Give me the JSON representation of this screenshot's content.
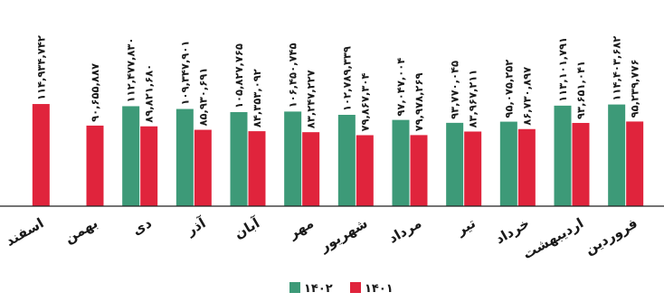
{
  "chart_data": {
    "type": "bar",
    "categories": [
      "فروردین",
      "اردیبهشت",
      "خرداد",
      "تیر",
      "مرداد",
      "شهریور",
      "مهر",
      "آبان",
      "آذر",
      "دی",
      "بهمن",
      "اسفند"
    ],
    "series": [
      {
        "name": "۱۴۰۲",
        "color": "#3d9a78",
        "values": [
          114403682,
          113101791,
          95075252,
          93770045,
          97047004,
          102789339,
          106450745,
          105827765,
          109347901,
          112477830,
          null,
          null
        ],
        "labels": [
          "۱۱۴,۴۰۳,۶۸۲",
          "۱۱۳,۱۰۱,۷۹۱",
          "۹۵,۰۷۵,۲۵۲",
          "۹۳,۷۷۰,۰۴۵",
          "۹۷,۰۴۷,۰۰۴",
          "۱۰۲,۷۸۹,۳۳۹",
          "۱۰۶,۴۵۰,۷۴۵",
          "۱۰۵,۸۲۷,۷۶۵",
          "۱۰۹,۳۴۷,۹۰۱",
          "۱۱۲,۴۷۷,۸۳۰",
          "",
          ""
        ]
      },
      {
        "name": "۱۴۰۱",
        "color": "#e0243c",
        "values": [
          95239776,
          93651041,
          86730897,
          83967211,
          79978269,
          79867304,
          83247227,
          84353092,
          85930691,
          89821680,
          90655887,
          114934742
        ],
        "labels": [
          "۹۵,۲۳۹,۷۷۶",
          "۹۳,۶۵۱,۰۴۱",
          "۸۶,۷۳۰,۸۹۷",
          "۸۳,۹۶۷,۲۱۱",
          "۷۹,۹۷۸,۲۶۹",
          "۷۹,۸۶۷,۳۰۴",
          "۸۳,۲۴۷,۲۲۷",
          "۸۴,۳۵۳,۰۹۲",
          "۸۵,۹۳۰,۶۹۱",
          "۸۹,۸۲۱,۶۸۰",
          "۹۰,۶۵۵,۸۸۷",
          "۱۱۴,۹۳۴,۷۴۲"
        ]
      }
    ],
    "legend": {
      "placement": "bottom"
    },
    "grid": false,
    "ylim": [
      0,
      232000000
    ]
  }
}
